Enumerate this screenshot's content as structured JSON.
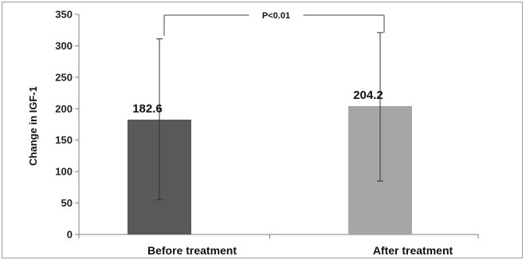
{
  "chart_data": {
    "type": "bar",
    "categories": [
      "Before treatment",
      "After treatment"
    ],
    "values": [
      182.6,
      204.2
    ],
    "error_bars": [
      {
        "low": 55,
        "high": 311
      },
      {
        "low": 85,
        "high": 321
      }
    ],
    "data_labels": [
      "182.6",
      "204.2"
    ],
    "bar_colors": [
      "#595959",
      "#a6a6a6"
    ],
    "ylabel": "Change in IGF-1",
    "xlabel": "",
    "ylim": [
      0,
      350
    ],
    "yticks": [
      0,
      50,
      100,
      150,
      200,
      250,
      300,
      350
    ],
    "grid": false,
    "annotation": {
      "text": "P<0.01",
      "type": "significance-bracket"
    }
  }
}
